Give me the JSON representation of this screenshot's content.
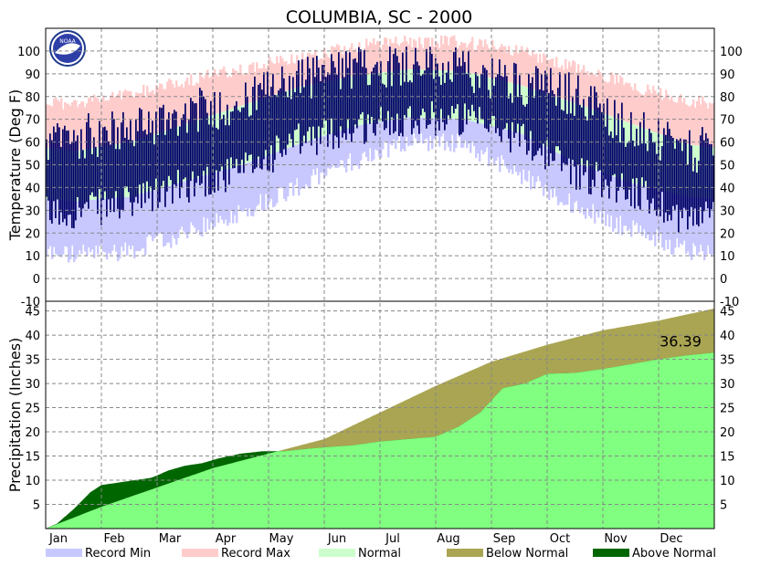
{
  "chart_data": {
    "title": "COLUMBIA, SC - 2000",
    "months": [
      "Jan",
      "Feb",
      "Mar",
      "Apr",
      "May",
      "Jun",
      "Jul",
      "Aug",
      "Sep",
      "Oct",
      "Nov",
      "Dec"
    ],
    "temperature": {
      "type": "bar",
      "ylabel": "Temperature (Deg F)",
      "ylim": [
        -10,
        110
      ],
      "yticks": [
        -10,
        0,
        10,
        20,
        30,
        40,
        50,
        60,
        70,
        80,
        90,
        100
      ],
      "grid": true,
      "normal_high_monthly": [
        56,
        60,
        68,
        76,
        84,
        89,
        92,
        91,
        85,
        77,
        68,
        59
      ],
      "normal_low_monthly": [
        34,
        36,
        43,
        50,
        59,
        67,
        71,
        70,
        64,
        51,
        42,
        36
      ],
      "record_high_monthly": [
        80,
        84,
        90,
        95,
        100,
        105,
        107,
        107,
        103,
        96,
        88,
        81
      ],
      "record_low_monthly": [
        6,
        8,
        15,
        25,
        36,
        47,
        56,
        55,
        41,
        27,
        17,
        8
      ],
      "actual_high_monthly": [
        62,
        65,
        73,
        77,
        88,
        92,
        95,
        91,
        86,
        81,
        66,
        55
      ],
      "actual_low_monthly": [
        30,
        33,
        41,
        47,
        60,
        66,
        71,
        70,
        62,
        47,
        39,
        26
      ]
    },
    "precipitation": {
      "type": "area",
      "ylabel": "Precipitation (Inches)",
      "ylim": [
        0,
        47
      ],
      "yticks": [
        5,
        10,
        15,
        20,
        25,
        30,
        35,
        40,
        45
      ],
      "grid": true,
      "normal_cumulative_x_month": [
        0,
        1,
        2,
        3,
        4,
        5,
        6,
        7,
        8,
        9,
        10,
        11,
        12
      ],
      "normal_cumulative": [
        0,
        4.5,
        8.5,
        12.5,
        15.5,
        18.5,
        24,
        29.5,
        34.5,
        38,
        41,
        43,
        45.5
      ],
      "actual_cumulative_x_month": [
        0,
        0.2,
        0.5,
        0.8,
        1,
        1.3,
        1.6,
        1.9,
        2.2,
        2.5,
        2.8,
        3.1,
        3.5,
        3.9,
        4.3,
        4.7,
        5.0,
        5.5,
        6.0,
        6.5,
        7.0,
        7.4,
        7.8,
        8.2,
        8.6,
        9.0,
        9.5,
        10.0,
        10.5,
        11.0,
        11.5,
        12.0
      ],
      "actual_cumulative": [
        0,
        1.0,
        4.0,
        7.5,
        9.0,
        9.5,
        10.0,
        10.5,
        12.0,
        13.0,
        13.5,
        14.5,
        15.5,
        16.0,
        16.0,
        16.5,
        16.8,
        17.2,
        18.0,
        18.5,
        19.0,
        21.0,
        24.0,
        29.0,
        30.0,
        32.0,
        32.2,
        33.0,
        34.0,
        35.0,
        35.8,
        36.39
      ],
      "total_label": "36.39"
    },
    "legend": [
      {
        "label": "Record Min",
        "color": "#c8c8ff"
      },
      {
        "label": "Record Max",
        "color": "#ffcccc"
      },
      {
        "label": "Normal",
        "color": "#ccffcc"
      },
      {
        "label": "Below Normal",
        "color": "#aaa552"
      },
      {
        "label": "Above Normal",
        "color": "#006600"
      }
    ],
    "colors": {
      "actual_temp": "#000066",
      "precip_normal_fill": "#80ff80",
      "below_normal": "#aaa552",
      "above_normal": "#006600",
      "grid": "#888888"
    }
  },
  "logo": {
    "text": "NOAA"
  }
}
